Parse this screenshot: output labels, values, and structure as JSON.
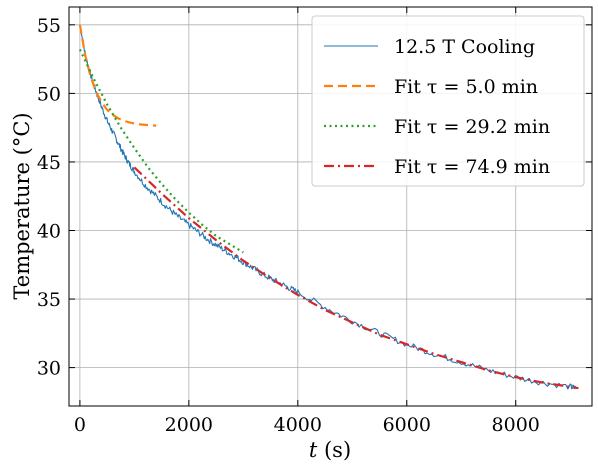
{
  "chart_data": {
    "type": "line",
    "title": "",
    "xlabel": "t (s)",
    "ylabel": "Temperature (°C)",
    "xlim": [
      -200,
      9400
    ],
    "ylim": [
      27.2,
      56.3
    ],
    "xticks": [
      0,
      2000,
      4000,
      6000,
      8000
    ],
    "xtick_labels": [
      "0",
      "2000",
      "4000",
      "6000",
      "8000"
    ],
    "yticks": [
      30,
      35,
      40,
      45,
      50,
      55
    ],
    "ytick_labels": [
      "30",
      "35",
      "40",
      "45",
      "50",
      "55"
    ],
    "grid": true,
    "legend_position": "top-right",
    "series": [
      {
        "name": "12.5 T Cooling",
        "color": "#1f77b4",
        "style": "solid",
        "x": [
          0,
          100,
          200,
          300,
          400,
          500,
          600,
          700,
          800,
          900,
          1000,
          1200,
          1400,
          1600,
          1800,
          2000,
          2200,
          2400,
          2600,
          2800,
          3000,
          3200,
          3400,
          3600,
          3800,
          4000,
          4500,
          5000,
          5500,
          6000,
          6500,
          7000,
          7500,
          8000,
          8500,
          9000,
          9100
        ],
        "y": [
          55.0,
          52.8,
          51.3,
          50.1,
          49.0,
          48.0,
          47.2,
          46.4,
          45.6,
          44.9,
          44.3,
          43.3,
          42.5,
          41.7,
          41.0,
          40.4,
          39.8,
          39.2,
          38.7,
          38.2,
          37.7,
          37.2,
          36.7,
          36.3,
          35.9,
          35.5,
          34.4,
          33.4,
          32.5,
          31.7,
          31.0,
          30.4,
          29.8,
          29.3,
          28.9,
          28.6,
          28.5
        ]
      },
      {
        "name": "Fit τ = 5.0 min",
        "color": "#ff7f0e",
        "style": "dashed",
        "x": [
          0,
          100,
          200,
          300,
          400,
          500,
          600,
          700,
          800,
          900,
          1000,
          1100,
          1200,
          1300,
          1400
        ],
        "y": [
          55.0,
          52.75,
          51.19,
          50.1,
          49.34,
          48.81,
          48.44,
          48.19,
          48.01,
          47.89,
          47.8,
          47.74,
          47.7,
          47.67,
          47.65
        ]
      },
      {
        "name": "Fit τ = 29.2 min",
        "color": "#2ca02c",
        "style": "dotted",
        "x": [
          0,
          250,
          500,
          750,
          1000,
          1250,
          1500,
          1750,
          2000,
          2250,
          2500,
          2750,
          3000
        ],
        "y": [
          53.2,
          51.1,
          49.2,
          47.5,
          46.0,
          44.6,
          43.4,
          42.3,
          41.3,
          40.4,
          39.6,
          39.0,
          38.4
        ]
      },
      {
        "name": "Fit τ = 74.9 min",
        "color": "#d62728",
        "style": "dashdot",
        "x": [
          1000,
          1500,
          2000,
          2500,
          3000,
          3500,
          4000,
          4500,
          5000,
          5500,
          6000,
          6500,
          7000,
          7500,
          8000,
          8500,
          9000,
          9150
        ],
        "y": [
          44.6,
          42.7,
          40.9,
          39.3,
          37.8,
          36.5,
          35.3,
          34.2,
          33.3,
          32.4,
          31.7,
          31.0,
          30.4,
          29.8,
          29.3,
          28.9,
          28.6,
          28.5
        ]
      }
    ]
  }
}
